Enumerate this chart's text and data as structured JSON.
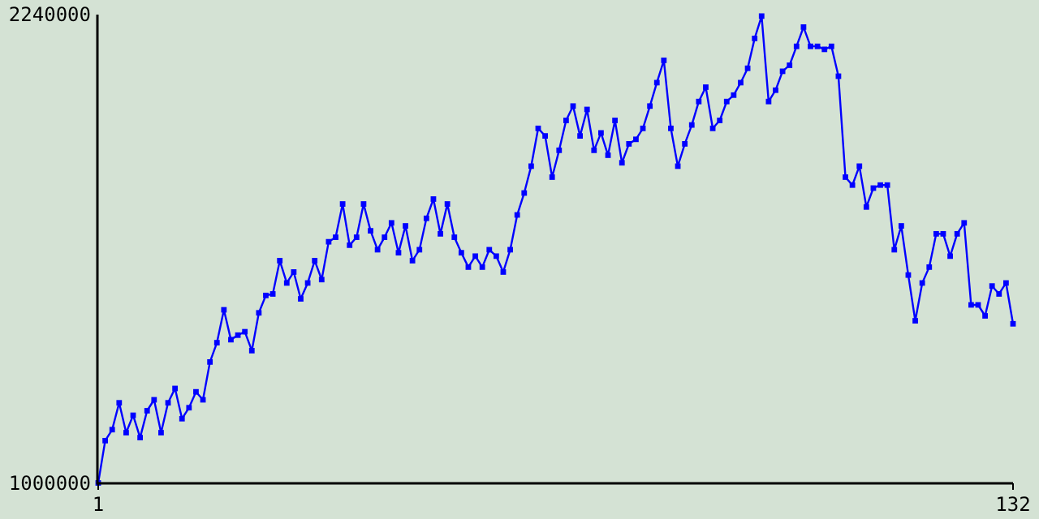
{
  "chart_data": {
    "type": "line",
    "marker": "square",
    "line_style": "solid",
    "color": "#0000ff",
    "xlim": [
      1,
      132
    ],
    "xticks": [
      1,
      132
    ],
    "ylim": [
      1000000,
      2240000
    ],
    "yticks": [
      1000000,
      2240000
    ],
    "x": [
      1,
      2,
      3,
      4,
      5,
      6,
      7,
      8,
      9,
      10,
      11,
      12,
      13,
      14,
      15,
      16,
      17,
      18,
      19,
      20,
      21,
      22,
      23,
      24,
      25,
      26,
      27,
      28,
      29,
      30,
      31,
      32,
      33,
      34,
      35,
      36,
      37,
      38,
      39,
      40,
      41,
      42,
      43,
      44,
      45,
      46,
      47,
      48,
      49,
      50,
      51,
      52,
      53,
      54,
      55,
      56,
      57,
      58,
      59,
      60,
      61,
      62,
      63,
      64,
      65,
      66,
      67,
      68,
      69,
      70,
      71,
      72,
      73,
      74,
      75,
      76,
      77,
      78,
      79,
      80,
      81,
      82,
      83,
      84,
      85,
      86,
      87,
      88,
      89,
      90,
      91,
      92,
      93,
      94,
      95,
      96,
      97,
      98,
      99,
      100,
      101,
      102,
      103,
      104,
      105,
      106,
      107,
      108,
      109,
      110,
      111,
      112,
      113,
      114,
      115,
      116,
      117,
      118,
      119,
      120,
      121,
      122,
      123,
      124,
      125,
      126,
      127,
      128,
      129,
      130,
      131,
      132
    ],
    "values": [
      1001000,
      1113000,
      1142000,
      1213000,
      1134000,
      1180000,
      1121000,
      1192000,
      1221000,
      1134000,
      1213000,
      1251000,
      1171000,
      1200000,
      1242000,
      1221000,
      1321000,
      1372000,
      1459000,
      1380000,
      1392000,
      1401000,
      1351000,
      1451000,
      1497000,
      1501000,
      1589000,
      1530000,
      1559000,
      1488000,
      1530000,
      1589000,
      1539000,
      1639000,
      1651000,
      1739000,
      1630000,
      1651000,
      1739000,
      1668000,
      1618000,
      1651000,
      1689000,
      1610000,
      1681000,
      1589000,
      1618000,
      1701000,
      1752000,
      1660000,
      1739000,
      1651000,
      1610000,
      1572000,
      1601000,
      1572000,
      1618000,
      1601000,
      1559000,
      1618000,
      1710000,
      1768000,
      1839000,
      1939000,
      1919000,
      1810000,
      1881000,
      1960000,
      1998000,
      1919000,
      1989000,
      1881000,
      1927000,
      1868000,
      1960000,
      1848000,
      1898000,
      1910000,
      1939000,
      1998000,
      2060000,
      2119000,
      1939000,
      1839000,
      1898000,
      1948000,
      2010000,
      2048000,
      1939000,
      1960000,
      2010000,
      2027000,
      2060000,
      2098000,
      2177000,
      2236000,
      2010000,
      2040000,
      2090000,
      2106000,
      2156000,
      2207000,
      2156000,
      2156000,
      2148000,
      2156000,
      2077000,
      1810000,
      1789000,
      1839000,
      1731000,
      1781000,
      1789000,
      1789000,
      1618000,
      1681000,
      1551000,
      1430000,
      1530000,
      1572000,
      1660000,
      1660000,
      1601000,
      1660000,
      1689000,
      1472000,
      1472000,
      1443000,
      1522000,
      1501000,
      1530000,
      1422000
    ]
  }
}
